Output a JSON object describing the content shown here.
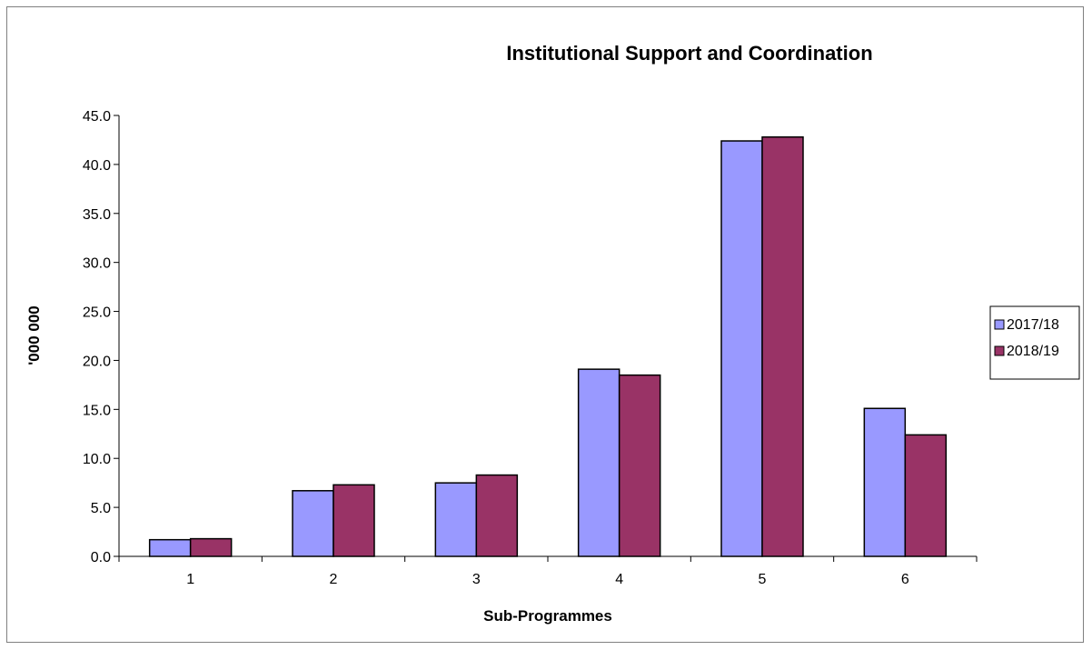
{
  "chart_data": {
    "type": "bar",
    "title": "Institutional Support and Coordination",
    "xlabel": "Sub-Programmes",
    "ylabel": "'000 000",
    "categories": [
      "1",
      "2",
      "3",
      "4",
      "5",
      "6"
    ],
    "series": [
      {
        "name": "2017/18",
        "color": "#9999ff",
        "values": [
          1.7,
          6.7,
          7.5,
          19.1,
          42.4,
          15.1
        ]
      },
      {
        "name": "2018/19",
        "color": "#993366",
        "values": [
          1.8,
          7.3,
          8.3,
          18.5,
          42.8,
          12.4
        ]
      }
    ],
    "ylim": [
      0,
      45
    ],
    "yticks": [
      "0.0",
      "5.0",
      "10.0",
      "15.0",
      "20.0",
      "25.0",
      "30.0",
      "35.0",
      "40.0",
      "45.0"
    ],
    "grid": false,
    "legend_position": "right"
  }
}
